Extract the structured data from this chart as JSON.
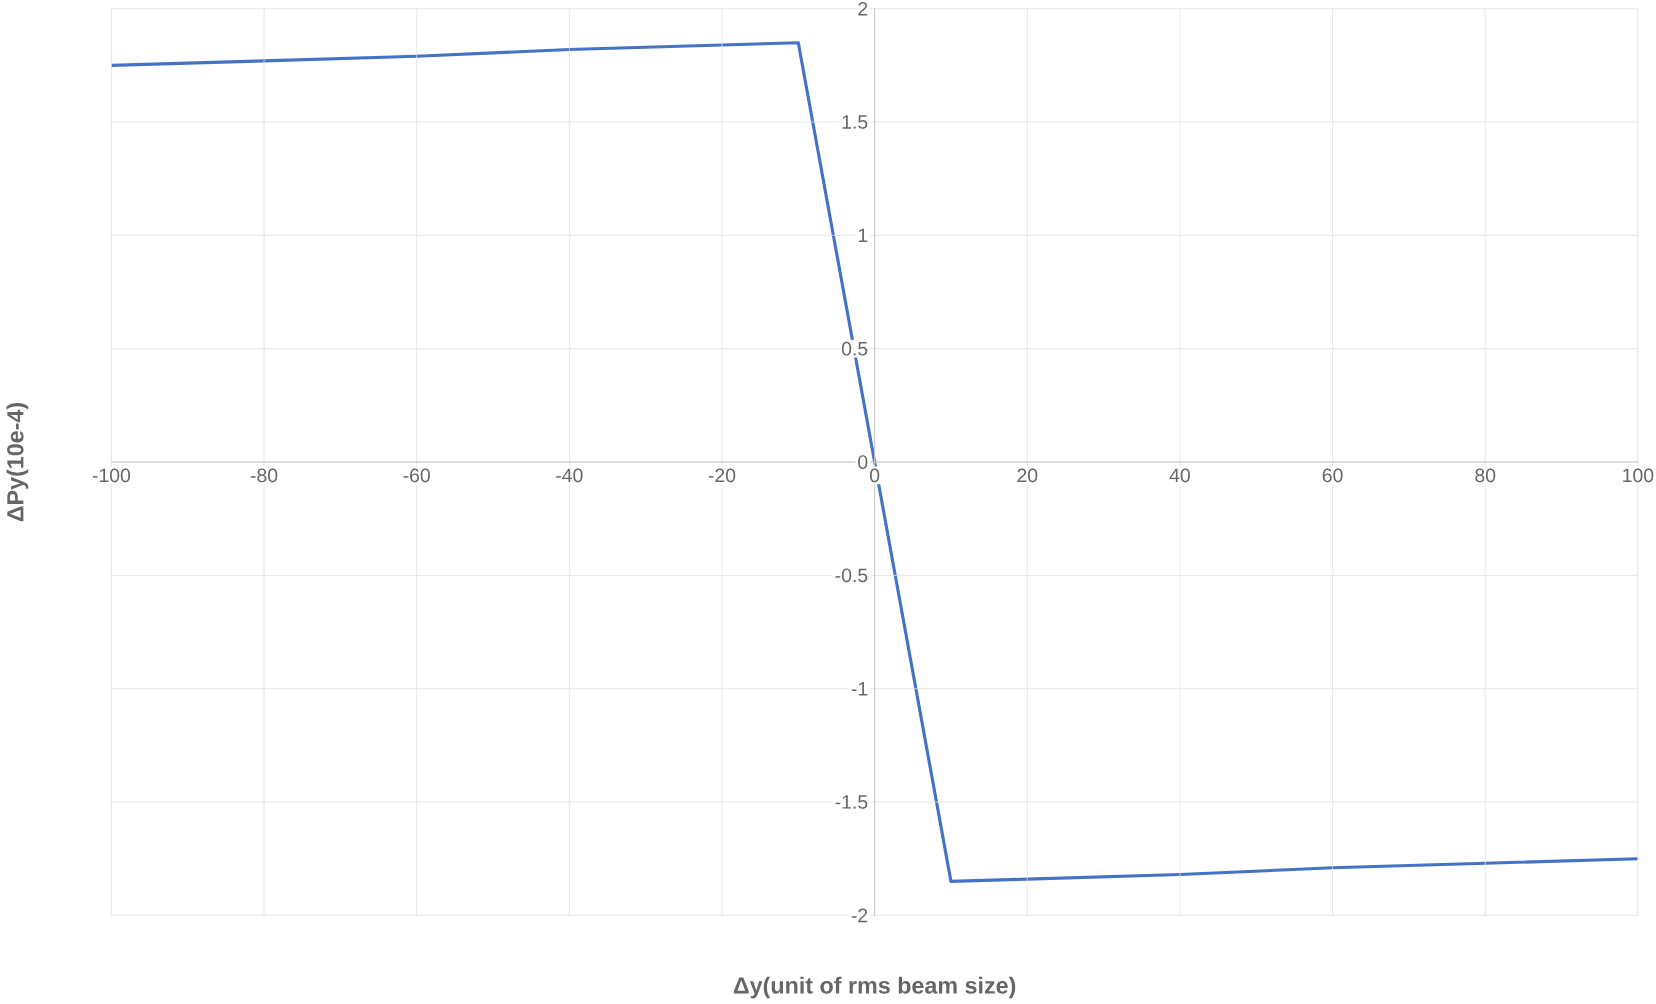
{
  "chart_data": {
    "type": "line",
    "xlabel": "Δy(unit of rms beam size)",
    "ylabel": "ΔPy(10e-4)",
    "x": [
      -100,
      -80,
      -60,
      -40,
      -20,
      -10,
      0,
      10,
      20,
      40,
      60,
      80,
      100
    ],
    "series": [
      {
        "color": "#4472c4",
        "values": [
          1.75,
          1.77,
          1.79,
          1.82,
          1.84,
          1.85,
          0,
          -1.85,
          -1.84,
          -1.82,
          -1.79,
          -1.77,
          -1.75
        ]
      }
    ],
    "xlim": [
      -100,
      100
    ],
    "ylim": [
      -2,
      2
    ],
    "xticks": [
      -100,
      -80,
      -60,
      -40,
      -20,
      0,
      20,
      40,
      60,
      80,
      100
    ],
    "yticks": [
      -2,
      -1.5,
      -1,
      -0.5,
      0,
      0.5,
      1,
      1.5,
      2
    ],
    "grid": true,
    "marker": "none",
    "line_style": "solid"
  }
}
